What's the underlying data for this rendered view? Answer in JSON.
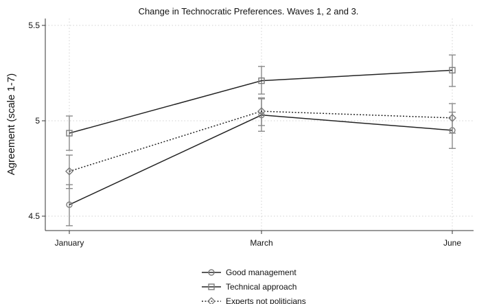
{
  "chart_data": {
    "type": "line",
    "title": "Change in Technocratic Preferences. Waves 1, 2 and 3.",
    "ylabel": "Agreement (scale 1-7)",
    "xlabel": "",
    "categories": [
      "January",
      "March",
      "June"
    ],
    "ylim": [
      4.4,
      5.52
    ],
    "yticks": [
      4.5,
      5,
      5.5
    ],
    "ytick_labels": [
      "4.5",
      "5",
      "5.5"
    ],
    "grid": true,
    "legend": "bottom",
    "series": [
      {
        "name": "Good management",
        "marker": "circle",
        "line": "solid",
        "color": "#222222",
        "values": [
          4.56,
          5.03,
          4.95
        ],
        "ci_low": [
          4.45,
          4.945,
          4.855
        ],
        "ci_high": [
          4.665,
          5.115,
          5.045
        ]
      },
      {
        "name": "Technical approach",
        "marker": "square",
        "line": "solid",
        "color": "#222222",
        "values": [
          4.935,
          5.21,
          5.265
        ],
        "ci_low": [
          4.845,
          5.14,
          5.18
        ],
        "ci_high": [
          5.025,
          5.285,
          5.345
        ]
      },
      {
        "name": "Experts not politicians",
        "marker": "diamond",
        "line": "dotted",
        "color": "#222222",
        "values": [
          4.735,
          5.05,
          5.015
        ],
        "ci_low": [
          4.645,
          4.975,
          4.935
        ],
        "ci_high": [
          4.82,
          5.12,
          5.09
        ]
      }
    ]
  }
}
